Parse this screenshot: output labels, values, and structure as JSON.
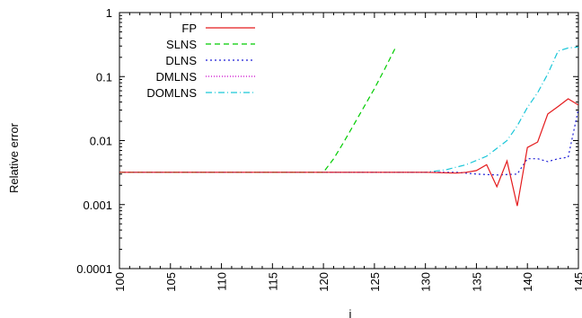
{
  "chart_data": {
    "type": "line",
    "title": "",
    "xlabel": "i",
    "ylabel": "Relative error",
    "xlim": [
      100,
      145
    ],
    "ylim": [
      0.0001,
      1
    ],
    "yscale": "log",
    "grid": false,
    "legend_position": "top-left",
    "x_ticks": [
      100,
      105,
      110,
      115,
      120,
      125,
      130,
      135,
      140,
      145
    ],
    "x_tick_labels": [
      "100",
      "105",
      "110",
      "115",
      "120",
      "125",
      "130",
      "135",
      "140",
      "145"
    ],
    "y_ticks": [
      0.0001,
      0.001,
      0.01,
      0.1,
      1
    ],
    "y_tick_labels": [
      "0.0001",
      "0.001",
      "0.01",
      "0.1",
      "1"
    ],
    "series": [
      {
        "name": "FP",
        "color": "#e41a1c",
        "dash": "solid",
        "x": [
          100,
          120,
          130,
          133,
          134,
          135,
          136,
          137,
          138,
          139,
          140,
          141,
          142,
          143,
          144,
          145
        ],
        "y": [
          0.0032,
          0.0032,
          0.0032,
          0.0031,
          0.0032,
          0.0034,
          0.0042,
          0.0019,
          0.0048,
          0.00095,
          0.0078,
          0.0095,
          0.026,
          0.034,
          0.045,
          0.036
        ]
      },
      {
        "name": "SLNS",
        "color": "#00cc00",
        "dash": "dashed",
        "x": [
          100,
          120,
          121,
          122,
          123,
          124,
          125,
          126,
          127
        ],
        "y": [
          0.0032,
          0.0032,
          0.0052,
          0.0095,
          0.018,
          0.034,
          0.065,
          0.13,
          0.27
        ]
      },
      {
        "name": "DLNS",
        "color": "#1f1fd6",
        "dash": "dotted",
        "x": [
          100,
          130,
          133,
          135,
          137,
          139,
          140,
          141,
          142,
          143,
          144,
          145
        ],
        "y": [
          0.0032,
          0.0032,
          0.0032,
          0.003,
          0.0029,
          0.003,
          0.0052,
          0.0052,
          0.0047,
          0.0052,
          0.0055,
          0.031
        ]
      },
      {
        "name": "DMLNS",
        "color": "#cc00cc",
        "dash": "dotted-fine",
        "x": [
          100,
          130,
          131,
          132
        ],
        "y": [
          0.0032,
          0.0032,
          0.0032,
          0.0032
        ]
      },
      {
        "name": "DOMLNS",
        "color": "#19c6d8",
        "dash": "dashdot",
        "x": [
          100,
          130,
          132,
          134,
          136,
          138,
          139,
          140,
          141,
          142,
          143,
          144,
          145
        ],
        "y": [
          0.0032,
          0.0032,
          0.0035,
          0.0042,
          0.0057,
          0.01,
          0.017,
          0.033,
          0.056,
          0.11,
          0.25,
          0.28,
          0.29
        ]
      }
    ]
  }
}
